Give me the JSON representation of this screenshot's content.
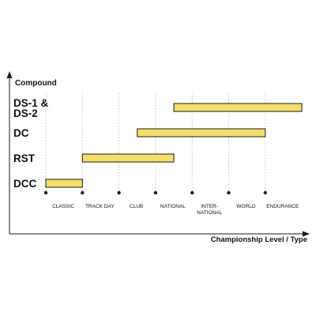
{
  "chart_data": {
    "type": "bar",
    "subtype": "range-bar",
    "title": "",
    "ylabel": "Compound",
    "xlabel": "Championship Level / Type",
    "x_ticks": [
      {
        "lines": [
          "CLASSIC"
        ]
      },
      {
        "lines": [
          "TRACK DAY"
        ]
      },
      {
        "lines": [
          "CLUB"
        ]
      },
      {
        "lines": [
          "NATIONAL"
        ]
      },
      {
        "lines": [
          "INTER-",
          "NATIONAL"
        ]
      },
      {
        "lines": [
          "WORLD"
        ]
      },
      {
        "lines": [
          "ENDURANCE"
        ]
      }
    ],
    "categories": [
      {
        "lines": [
          "DS-1 &",
          "DS-2"
        ],
        "start_tick": 3.5,
        "end_tick": 7
      },
      {
        "lines": [
          "DC"
        ],
        "start_tick": 2.5,
        "end_tick": 6
      },
      {
        "lines": [
          "RST"
        ],
        "start_tick": 1,
        "end_tick": 3.5
      },
      {
        "lines": [
          "DCC"
        ],
        "start_tick": 0,
        "end_tick": 1
      }
    ],
    "grid": "vertical-dotted",
    "colors": {
      "bar_fill": "#f5df6b",
      "bar_stroke": "#1a1a1a",
      "axis": "#1a1a1a",
      "grid": "#b5b5b5",
      "text": "#111111"
    }
  }
}
